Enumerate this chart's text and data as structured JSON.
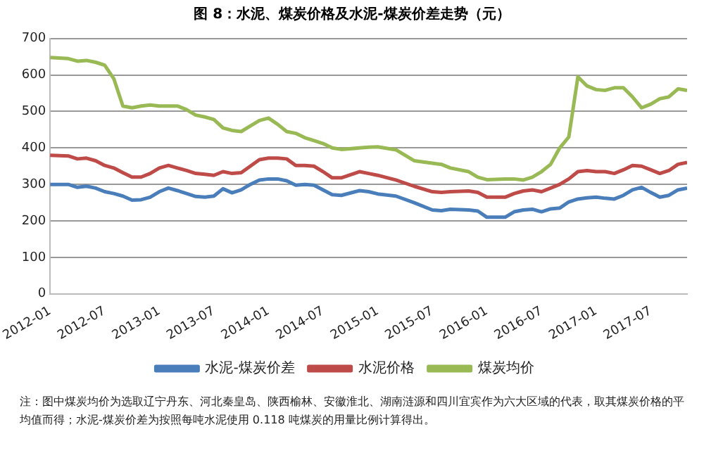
{
  "chart_data": {
    "type": "line",
    "title": "图 8：水泥、煤炭价格及水泥-煤炭价差走势（元）",
    "x": [
      "2012-01",
      "2012-03",
      "2012-04",
      "2012-05",
      "2012-06",
      "2012-07",
      "2012-08",
      "2012-09",
      "2012-10",
      "2012-11",
      "2012-12",
      "2013-01",
      "2013-02",
      "2013-03",
      "2013-04",
      "2013-05",
      "2013-06",
      "2013-07",
      "2013-08",
      "2013-09",
      "2013-10",
      "2013-11",
      "2013-12",
      "2014-01",
      "2014-02",
      "2014-03",
      "2014-04",
      "2014-05",
      "2014-06",
      "2014-07",
      "2014-08",
      "2014-09",
      "2014-11",
      "2014-12",
      "2015-01",
      "2015-03",
      "2015-05",
      "2015-07",
      "2015-08",
      "2015-09",
      "2015-11",
      "2015-12",
      "2016-01",
      "2016-03",
      "2016-04",
      "2016-05",
      "2016-06",
      "2016-07",
      "2016-08",
      "2016-09",
      "2016-10",
      "2016-11",
      "2016-12",
      "2017-01",
      "2017-02",
      "2017-03",
      "2017-04",
      "2017-05",
      "2017-06",
      "2017-07",
      "2017-08",
      "2017-09",
      "2017-10",
      "2017-11"
    ],
    "series": [
      {
        "name": "水泥-煤炭价差",
        "color": "#4a7ebb",
        "values": [
          300,
          300,
          292,
          295,
          290,
          280,
          275,
          268,
          257,
          258,
          265,
          280,
          290,
          283,
          275,
          267,
          265,
          268,
          288,
          277,
          285,
          300,
          312,
          315,
          315,
          310,
          298,
          300,
          298,
          285,
          272,
          270,
          283,
          280,
          274,
          268,
          250,
          230,
          228,
          232,
          230,
          227,
          210,
          210,
          225,
          230,
          232,
          225,
          233,
          235,
          252,
          260,
          263,
          265,
          262,
          260,
          270,
          285,
          292,
          278,
          265,
          270,
          285,
          290
        ]
      },
      {
        "name": "水泥价格",
        "color": "#be4b48",
        "values": [
          380,
          378,
          370,
          372,
          365,
          352,
          345,
          332,
          320,
          320,
          330,
          345,
          352,
          345,
          338,
          330,
          328,
          325,
          335,
          330,
          332,
          350,
          368,
          372,
          372,
          370,
          352,
          352,
          350,
          335,
          318,
          318,
          335,
          330,
          325,
          312,
          295,
          280,
          278,
          280,
          282,
          278,
          265,
          265,
          275,
          282,
          285,
          280,
          290,
          300,
          315,
          335,
          338,
          335,
          335,
          330,
          340,
          352,
          350,
          340,
          330,
          338,
          355,
          360
        ]
      },
      {
        "name": "煤炭均价",
        "color": "#98b954",
        "values": [
          648,
          645,
          638,
          640,
          635,
          627,
          590,
          515,
          510,
          515,
          518,
          515,
          515,
          515,
          505,
          490,
          485,
          478,
          455,
          448,
          445,
          460,
          475,
          482,
          465,
          445,
          440,
          428,
          420,
          412,
          400,
          396,
          400,
          402,
          403,
          395,
          365,
          358,
          355,
          345,
          335,
          320,
          313,
          315,
          315,
          312,
          320,
          335,
          355,
          400,
          430,
          595,
          570,
          560,
          558,
          565,
          565,
          540,
          510,
          520,
          535,
          540,
          562,
          558
        ]
      }
    ],
    "xlim": [
      "2012-01",
      "2017-11"
    ],
    "xticks": [
      "2012-01",
      "2012-07",
      "2013-01",
      "2013-07",
      "2014-01",
      "2014-07",
      "2015-01",
      "2015-07",
      "2016-01",
      "2016-07",
      "2017-01",
      "2017-07"
    ],
    "ylim": [
      0,
      700
    ],
    "yticks": [
      0,
      100,
      200,
      300,
      400,
      500,
      600,
      700
    ],
    "grid": "y",
    "legend": "bottom",
    "annotations": [
      "注：图中煤炭均价为选取辽宁丹东、河北秦皇岛、陕西榆林、安徽淮北、湖南涟源和四川宜宾作为六大区域的代表，取其煤炭价格的平均值而得；水泥-煤炭价差为按照每吨水泥使用 0.118 吨煤炭的用量比例计算得出。"
    ]
  }
}
